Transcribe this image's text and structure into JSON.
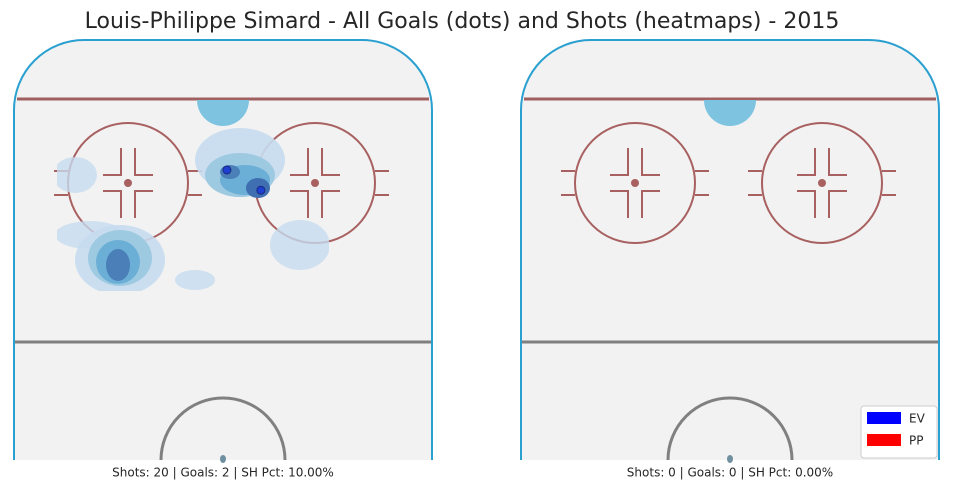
{
  "chart_data": [
    {
      "type": "scatter",
      "title": "Louis-Philippe Simard - All Goals (dots) and Shots (heatmaps) - 2015",
      "caption": "Shots: 20 | Goals: 2 | SH Pct: 10.00%",
      "series": [
        {
          "color": "#1f3fd0",
          "x": [
            0.8,
            7.7
          ],
          "y": [
            26.3,
            30.4
          ]
        }
      ],
      "xlim": [
        -42.5,
        42.5
      ],
      "ylim": [
        0,
        85
      ]
    },
    {
      "type": "scatter",
      "caption": "Shots: 0 | Goals: 0 | SH Pct: 0.00%",
      "series": [
        {
          "name": "EV",
          "color": "#0000ff",
          "x": [],
          "y": []
        },
        {
          "name": "PP",
          "color": "#ff0000",
          "x": [],
          "y": []
        }
      ],
      "xlim": [
        -42.5,
        42.5
      ],
      "ylim": [
        0,
        85
      ],
      "legend": "lower right"
    }
  ]
}
